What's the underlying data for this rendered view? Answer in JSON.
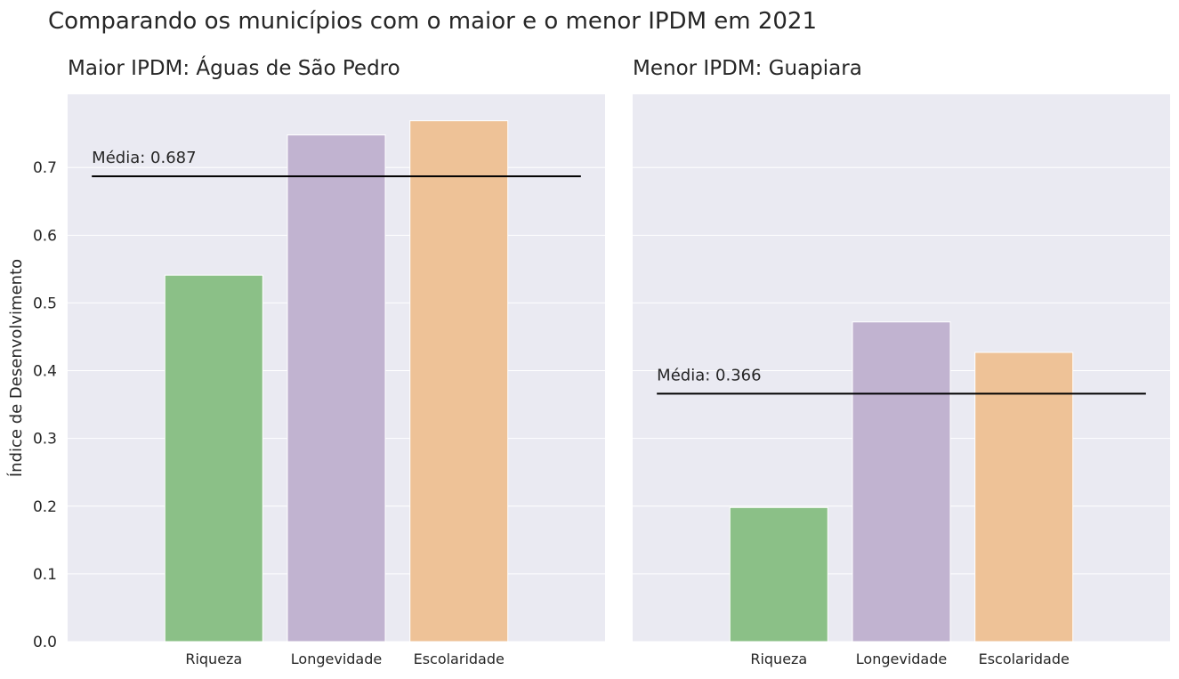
{
  "figure": {
    "title": "Comparando os municípios com o maior e o menor IPDM em 2021"
  },
  "chart_data": [
    {
      "type": "bar",
      "title": "Maior IPDM: Águas de São Pedro",
      "xlabel": "",
      "ylabel": "Índice de Desenvolvimento",
      "categories": [
        "Riqueza",
        "Longevidade",
        "Escolaridade"
      ],
      "values": [
        0.541,
        0.748,
        0.769
      ],
      "colors": [
        "#8bc087",
        "#c1b3d0",
        "#eec297"
      ],
      "ylim": [
        0,
        0.808
      ],
      "yticks": [
        "0.0",
        "0.1",
        "0.2",
        "0.3",
        "0.4",
        "0.5",
        "0.6",
        "0.7"
      ],
      "show_ytick_labels": true,
      "grid": true,
      "mean_line": {
        "value": 0.687,
        "label": "Média: 0.687"
      }
    },
    {
      "type": "bar",
      "title": "Menor IPDM: Guapiara",
      "xlabel": "",
      "ylabel": "",
      "categories": [
        "Riqueza",
        "Longevidade",
        "Escolaridade"
      ],
      "values": [
        0.198,
        0.472,
        0.427
      ],
      "colors": [
        "#8bc087",
        "#c1b3d0",
        "#eec297"
      ],
      "ylim": [
        0,
        0.808
      ],
      "yticks": [
        "0.0",
        "0.1",
        "0.2",
        "0.3",
        "0.4",
        "0.5",
        "0.6",
        "0.7"
      ],
      "show_ytick_labels": false,
      "grid": true,
      "mean_line": {
        "value": 0.366,
        "label": "Média: 0.366"
      }
    }
  ]
}
